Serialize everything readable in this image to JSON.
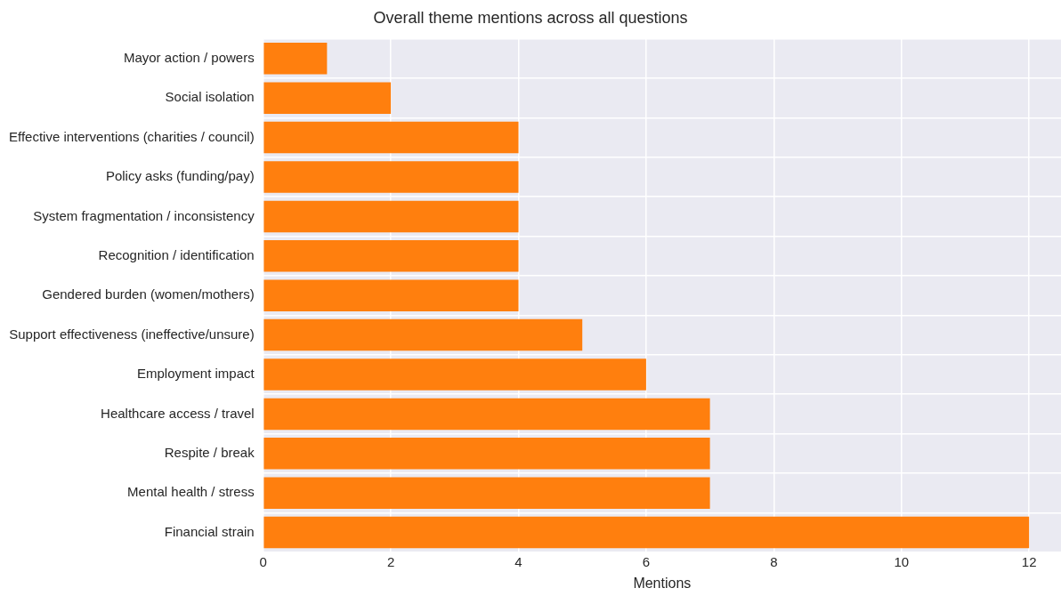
{
  "chart_data": {
    "type": "bar",
    "orientation": "horizontal",
    "title": "Overall theme mentions across all questions",
    "xlabel": "Mentions",
    "categories": [
      "Mayor action / powers",
      "Social isolation",
      "Effective interventions (charities / council)",
      "Policy asks (funding/pay)",
      "System fragmentation / inconsistency",
      "Recognition / identification",
      "Gendered burden (women/mothers)",
      "Support effectiveness (ineffective/unsure)",
      "Employment impact",
      "Healthcare access / travel",
      "Respite / break",
      "Mental health / stress",
      "Financial strain"
    ],
    "values": [
      1,
      2,
      4,
      4,
      4,
      4,
      4,
      5,
      6,
      7,
      7,
      7,
      12
    ],
    "color": "#ff7f0e",
    "xlim": [
      0,
      12.5
    ],
    "xticks": [
      0,
      2,
      4,
      6,
      8,
      10,
      12
    ],
    "grid": true
  }
}
